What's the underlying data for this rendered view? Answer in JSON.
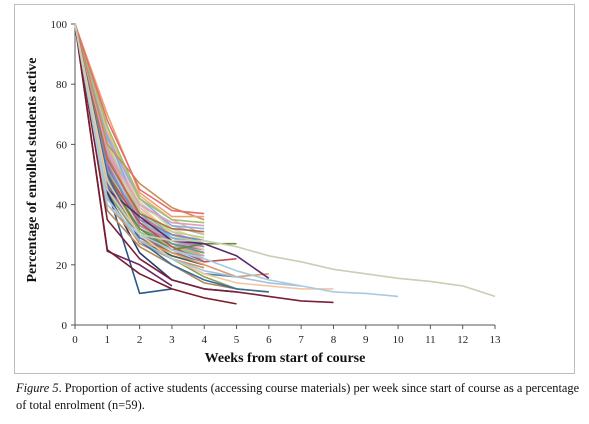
{
  "caption": {
    "figure_label": "Figure 5",
    "text": ". Proportion of active students (accessing course materials) per week since start of course as a percentage of total enrolment (n=59)."
  },
  "chart_data": {
    "type": "line",
    "xlabel": "Weeks from start of course",
    "ylabel": "Percentage of enrolled students active",
    "xlim": [
      0,
      13
    ],
    "ylim": [
      0,
      100
    ],
    "x_ticks": [
      0,
      1,
      2,
      3,
      4,
      5,
      6,
      7,
      8,
      9,
      10,
      11,
      12,
      13
    ],
    "y_ticks": [
      0,
      20,
      40,
      60,
      80,
      100
    ],
    "grid": false,
    "legend": "none",
    "series": [
      {
        "color": "#c8d0b4",
        "x": [
          0,
          1,
          2,
          3,
          4,
          5,
          6,
          7,
          8,
          9,
          10,
          11,
          12,
          13
        ],
        "y": [
          100,
          45,
          30,
          28,
          28,
          26,
          23,
          21,
          18.5,
          17,
          15.5,
          14.5,
          13,
          9.5
        ]
      },
      {
        "color": "#a9c9e0",
        "x": [
          0,
          1,
          2,
          3,
          4,
          5,
          6,
          7,
          8,
          9,
          10
        ],
        "y": [
          100,
          40,
          30,
          25,
          22,
          18,
          15,
          13,
          11,
          10.5,
          9.5
        ]
      },
      {
        "color": "#7a2038",
        "x": [
          0,
          1,
          2,
          3,
          4,
          5,
          6,
          7,
          8
        ],
        "y": [
          100,
          35,
          22,
          15,
          12,
          11,
          9.5,
          8,
          7.5
        ]
      },
      {
        "color": "#a8c0dc",
        "x": [
          0,
          1,
          2,
          3,
          4,
          5,
          6,
          7
        ],
        "y": [
          100,
          42,
          28,
          22,
          18,
          16,
          14,
          13
        ]
      },
      {
        "color": "#f0c8a0",
        "x": [
          0,
          1,
          2,
          3,
          4,
          5,
          6,
          7,
          8
        ],
        "y": [
          100,
          48,
          30,
          22,
          17,
          14,
          13,
          12,
          12
        ]
      },
      {
        "color": "#5a2a6a",
        "x": [
          0,
          1,
          2,
          3,
          4,
          5,
          6
        ],
        "y": [
          100,
          45,
          36,
          28,
          27,
          23,
          15.5
        ]
      },
      {
        "color": "#e09868",
        "x": [
          0,
          1,
          2,
          3,
          4,
          5,
          6
        ],
        "y": [
          100,
          40,
          28,
          24,
          20,
          16,
          17
        ]
      },
      {
        "color": "#3a6a9a",
        "x": [
          0,
          1,
          2,
          3,
          4,
          5,
          6
        ],
        "y": [
          100,
          50,
          28,
          20,
          15,
          12,
          11
        ]
      },
      {
        "color": "#8aa05a",
        "x": [
          0,
          1,
          2,
          3,
          4,
          5,
          6
        ],
        "y": [
          100,
          45,
          30,
          22,
          16,
          12,
          11
        ]
      },
      {
        "color": "#6a8a3a",
        "x": [
          0,
          1,
          2,
          3,
          4,
          5
        ],
        "y": [
          100,
          48,
          32,
          25,
          27,
          27
        ]
      },
      {
        "color": "#c05050",
        "x": [
          0,
          1,
          2,
          3,
          4,
          5
        ],
        "y": [
          100,
          50,
          34,
          26,
          21,
          22
        ]
      },
      {
        "color": "#b08a5a",
        "x": [
          0,
          1,
          2,
          3,
          4,
          5
        ],
        "y": [
          100,
          38,
          26,
          20,
          14,
          12
        ]
      },
      {
        "color": "#7a1a2a",
        "x": [
          0,
          1,
          2,
          3,
          4,
          5
        ],
        "y": [
          100,
          25,
          17,
          12,
          9,
          7
        ]
      },
      {
        "color": "#2a3a6a",
        "x": [
          0,
          1,
          2,
          3,
          4,
          5
        ],
        "y": [
          100,
          44,
          24,
          15,
          12,
          11
        ]
      },
      {
        "color": "#4a8aa0",
        "x": [
          0,
          1,
          2,
          3,
          4,
          5
        ],
        "y": [
          100,
          42,
          28,
          22,
          17,
          16
        ]
      },
      {
        "color": "#6a2a6a",
        "x": [
          0,
          1,
          2,
          3
        ],
        "y": [
          100,
          24.5,
          20,
          13
        ]
      },
      {
        "color": "#2a5a8a",
        "x": [
          0,
          1,
          2,
          3
        ],
        "y": [
          100,
          45,
          10.5,
          12
        ]
      },
      {
        "color": "#e07070",
        "x": [
          0,
          1,
          2,
          3,
          4
        ],
        "y": [
          100,
          68,
          45,
          38,
          37
        ]
      },
      {
        "color": "#f0a070",
        "x": [
          0,
          1,
          2,
          3,
          4
        ],
        "y": [
          100,
          70,
          44,
          36,
          36
        ]
      },
      {
        "color": "#c89050",
        "x": [
          0,
          1,
          2,
          3,
          4
        ],
        "y": [
          100,
          60,
          47,
          39,
          35
        ]
      },
      {
        "color": "#a0c070",
        "x": [
          0,
          1,
          2,
          3,
          4
        ],
        "y": [
          100,
          66,
          42,
          35,
          34
        ]
      },
      {
        "color": "#d8a0c8",
        "x": [
          0,
          1,
          2,
          3,
          4
        ],
        "y": [
          100,
          58,
          40,
          34,
          33
        ]
      },
      {
        "color": "#90b0d8",
        "x": [
          0,
          1,
          2,
          3,
          4
        ],
        "y": [
          100,
          62,
          42,
          33,
          32
        ]
      },
      {
        "color": "#b07040",
        "x": [
          0,
          1,
          2,
          3,
          4
        ],
        "y": [
          100,
          55,
          37,
          32,
          31
        ]
      },
      {
        "color": "#e8b888",
        "x": [
          0,
          1,
          2,
          3,
          4
        ],
        "y": [
          100,
          64,
          43,
          35,
          30
        ]
      },
      {
        "color": "#7090c0",
        "x": [
          0,
          1,
          2,
          3,
          4
        ],
        "y": [
          100,
          52,
          35,
          30,
          28
        ]
      },
      {
        "color": "#c0d090",
        "x": [
          0,
          1,
          2,
          3,
          4
        ],
        "y": [
          100,
          60,
          38,
          31,
          29
        ]
      },
      {
        "color": "#d07888",
        "x": [
          0,
          1,
          2,
          3,
          4
        ],
        "y": [
          100,
          56,
          36,
          30,
          28
        ]
      },
      {
        "color": "#88b8c8",
        "x": [
          0,
          1,
          2,
          3,
          4
        ],
        "y": [
          100,
          50,
          34,
          29,
          27
        ]
      },
      {
        "color": "#a888c0",
        "x": [
          0,
          1,
          2,
          3,
          4
        ],
        "y": [
          100,
          54,
          33,
          28,
          26
        ]
      },
      {
        "color": "#f0d090",
        "x": [
          0,
          1,
          2,
          3,
          4
        ],
        "y": [
          100,
          65,
          40,
          30,
          25
        ]
      },
      {
        "color": "#60a088",
        "x": [
          0,
          1,
          2,
          3,
          4
        ],
        "y": [
          100,
          48,
          32,
          27,
          24
        ]
      },
      {
        "color": "#e0a0a0",
        "x": [
          0,
          1,
          2,
          3,
          4
        ],
        "y": [
          100,
          58,
          35,
          27,
          23
        ]
      },
      {
        "color": "#8070a8",
        "x": [
          0,
          1,
          2,
          3,
          4
        ],
        "y": [
          100,
          46,
          30,
          25,
          22
        ]
      },
      {
        "color": "#b8d0e8",
        "x": [
          0,
          1,
          2,
          3,
          4
        ],
        "y": [
          100,
          55,
          32,
          25,
          21
        ]
      },
      {
        "color": "#406850",
        "x": [
          0,
          1,
          2,
          3,
          4
        ],
        "y": [
          100,
          42,
          28,
          23,
          20
        ]
      },
      {
        "color": "#d0b070",
        "x": [
          0,
          1,
          2,
          3,
          4
        ],
        "y": [
          100,
          60,
          33,
          27,
          24
        ]
      },
      {
        "color": "#9a6a4a",
        "x": [
          0,
          1,
          2,
          3,
          4
        ],
        "y": [
          100,
          50,
          30,
          24,
          22
        ]
      },
      {
        "color": "#7ab0e0",
        "x": [
          0,
          1,
          2,
          3,
          4
        ],
        "y": [
          100,
          63,
          37,
          29,
          26
        ]
      },
      {
        "color": "#c0a0d8",
        "x": [
          0,
          1,
          2,
          3,
          4
        ],
        "y": [
          100,
          57,
          34,
          28,
          25
        ]
      },
      {
        "color": "#98c890",
        "x": [
          0,
          1,
          2,
          3,
          4
        ],
        "y": [
          100,
          52,
          31,
          26,
          23
        ]
      },
      {
        "color": "#e8c0a0",
        "x": [
          0,
          1,
          2,
          3,
          4
        ],
        "y": [
          100,
          61,
          36,
          30,
          27
        ]
      },
      {
        "color": "#5a7ab0",
        "x": [
          0,
          1,
          2,
          3,
          4
        ],
        "y": [
          100,
          47,
          29,
          24,
          21
        ]
      },
      {
        "color": "#d8d8a0",
        "x": [
          0,
          1,
          2,
          3,
          4
        ],
        "y": [
          100,
          66,
          41,
          32,
          28
        ]
      },
      {
        "color": "#b05a70",
        "x": [
          0,
          1,
          2,
          3,
          4
        ],
        "y": [
          100,
          53,
          33,
          27,
          25
        ]
      },
      {
        "color": "#70c0c0",
        "x": [
          0,
          1,
          2,
          3,
          4
        ],
        "y": [
          100,
          59,
          38,
          30,
          26
        ]
      },
      {
        "color": "#a0a0a0",
        "x": [
          0,
          1,
          2,
          3,
          4
        ],
        "y": [
          100,
          49,
          30,
          25,
          23
        ]
      },
      {
        "color": "#f0b0c0",
        "x": [
          0,
          1,
          2,
          3,
          4
        ],
        "y": [
          100,
          62,
          39,
          31,
          27
        ]
      },
      {
        "color": "#8a9a6a",
        "x": [
          0,
          1,
          2,
          3,
          4
        ],
        "y": [
          100,
          44,
          29,
          23,
          20
        ]
      },
      {
        "color": "#c8e0a8",
        "x": [
          0,
          1,
          2,
          3,
          4
        ],
        "y": [
          100,
          58,
          34,
          26,
          22
        ]
      },
      {
        "color": "#6080a0",
        "x": [
          0,
          1,
          2,
          3,
          4
        ],
        "y": [
          100,
          51,
          31,
          25,
          21
        ]
      },
      {
        "color": "#e0c8e0",
        "x": [
          0,
          1,
          2,
          3,
          4
        ],
        "y": [
          100,
          60,
          36,
          28,
          24
        ]
      },
      {
        "color": "#b8a070",
        "x": [
          0,
          1,
          2,
          3,
          4
        ],
        "y": [
          100,
          47,
          32,
          26,
          24
        ]
      },
      {
        "color": "#90d0b0",
        "x": [
          0,
          1,
          2,
          3,
          4
        ],
        "y": [
          100,
          55,
          35,
          29,
          25
        ]
      },
      {
        "color": "#d09060",
        "x": [
          0,
          1,
          2,
          3,
          4
        ],
        "y": [
          100,
          43,
          27,
          22,
          19
        ]
      },
      {
        "color": "#a8b8d8",
        "x": [
          0,
          1,
          2,
          3,
          4
        ],
        "y": [
          100,
          64,
          40,
          33,
          30
        ]
      },
      {
        "color": "#c07898",
        "x": [
          0,
          1,
          2,
          3,
          4
        ],
        "y": [
          100,
          46,
          30,
          26,
          23
        ]
      },
      {
        "color": "#80a8c8",
        "x": [
          0,
          1,
          2,
          3,
          4
        ],
        "y": [
          100,
          56,
          34,
          27,
          22
        ]
      },
      {
        "color": "#e8d8b0",
        "x": [
          0,
          1,
          2,
          3,
          4
        ],
        "y": [
          100,
          59,
          37,
          30,
          28
        ]
      }
    ]
  }
}
